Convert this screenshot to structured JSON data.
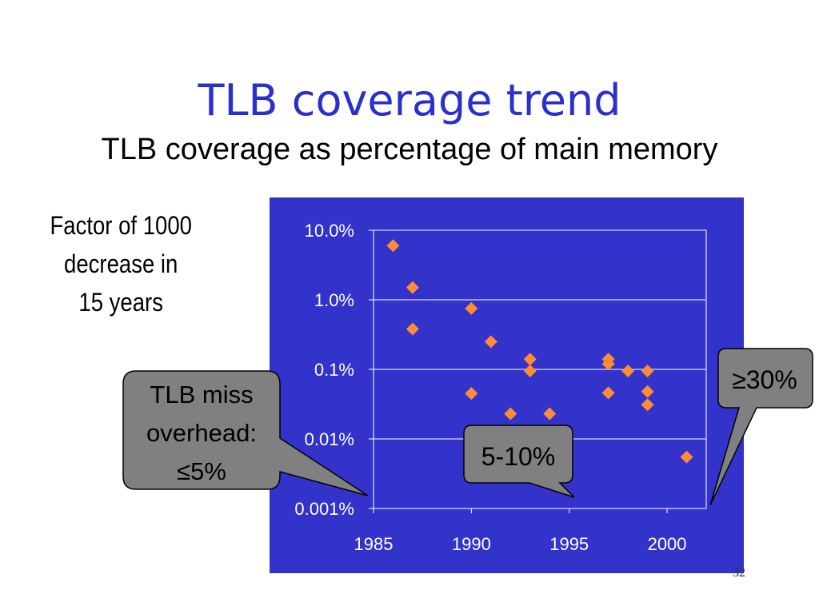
{
  "slide": {
    "title": "TLB coverage trend",
    "subtitle": "TLB coverage as percentage of main memory",
    "note_lines": [
      "Factor of 1000",
      "decrease in",
      "15 years"
    ],
    "slide_number": "32"
  },
  "callouts": {
    "left_lines": [
      "TLB miss",
      "overhead:",
      "≤5%"
    ],
    "middle": "5-10%",
    "right": "≥30%"
  },
  "colors": {
    "title": "#2a2fd0",
    "plot_bg": "#3333cc",
    "marker": "#ff8c33",
    "callout_fill": "#808080"
  },
  "chart_data": {
    "type": "scatter",
    "y_scale": "log",
    "xlim": [
      1985,
      2002
    ],
    "ylim": [
      0.001,
      10
    ],
    "x_ticks": [
      "1985",
      "1990",
      "1995",
      "2000"
    ],
    "y_ticks": [
      "10.0%",
      "1.0%",
      "0.1%",
      "0.01%",
      "0.001%"
    ],
    "grid": true,
    "points": [
      {
        "x": 1986,
        "y": 6.0
      },
      {
        "x": 1987,
        "y": 1.5
      },
      {
        "x": 1987,
        "y": 0.38
      },
      {
        "x": 1990,
        "y": 0.75
      },
      {
        "x": 1990,
        "y": 0.045
      },
      {
        "x": 1991,
        "y": 0.25
      },
      {
        "x": 1992,
        "y": 0.023
      },
      {
        "x": 1993,
        "y": 0.14
      },
      {
        "x": 1993,
        "y": 0.095
      },
      {
        "x": 1994,
        "y": 0.023
      },
      {
        "x": 1997,
        "y": 0.14
      },
      {
        "x": 1997,
        "y": 0.12
      },
      {
        "x": 1997,
        "y": 0.046
      },
      {
        "x": 1998,
        "y": 0.095
      },
      {
        "x": 1999,
        "y": 0.095
      },
      {
        "x": 1999,
        "y": 0.048
      },
      {
        "x": 1999,
        "y": 0.031
      },
      {
        "x": 2001,
        "y": 0.0055
      }
    ]
  }
}
